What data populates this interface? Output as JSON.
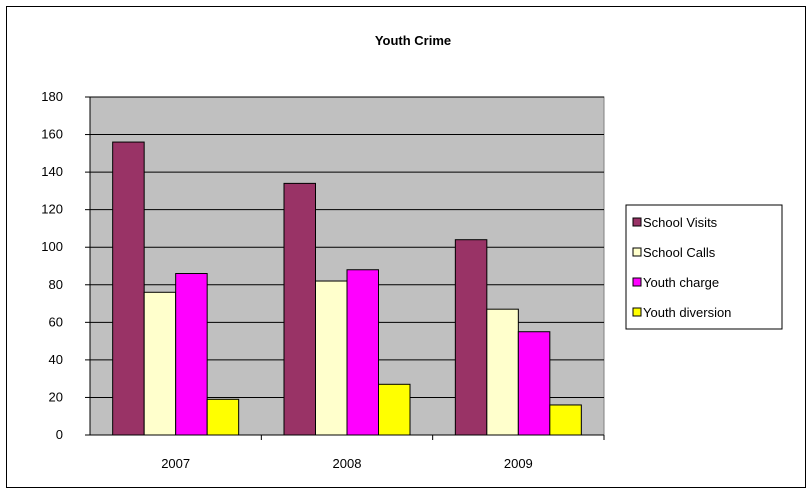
{
  "chart_data": {
    "type": "bar",
    "title": "Youth Crime",
    "xlabel": "",
    "ylabel": "",
    "categories": [
      "2007",
      "2008",
      "2009"
    ],
    "ylim": [
      0,
      180
    ],
    "yticks": [
      0,
      20,
      40,
      60,
      80,
      100,
      120,
      140,
      160,
      180
    ],
    "grid": true,
    "legend_position": "right",
    "plot_background": "#c0c0c0",
    "series": [
      {
        "name": "School Visits",
        "color": "#993366",
        "values": [
          156,
          134,
          104
        ]
      },
      {
        "name": "School Calls",
        "color": "#ffffcc",
        "values": [
          76,
          82,
          67
        ]
      },
      {
        "name": "Youth charge",
        "color": "#ff00ff",
        "values": [
          86,
          88,
          55
        ]
      },
      {
        "name": "Youth diversion",
        "color": "#ffff00",
        "values": [
          19,
          27,
          16
        ]
      }
    ]
  }
}
